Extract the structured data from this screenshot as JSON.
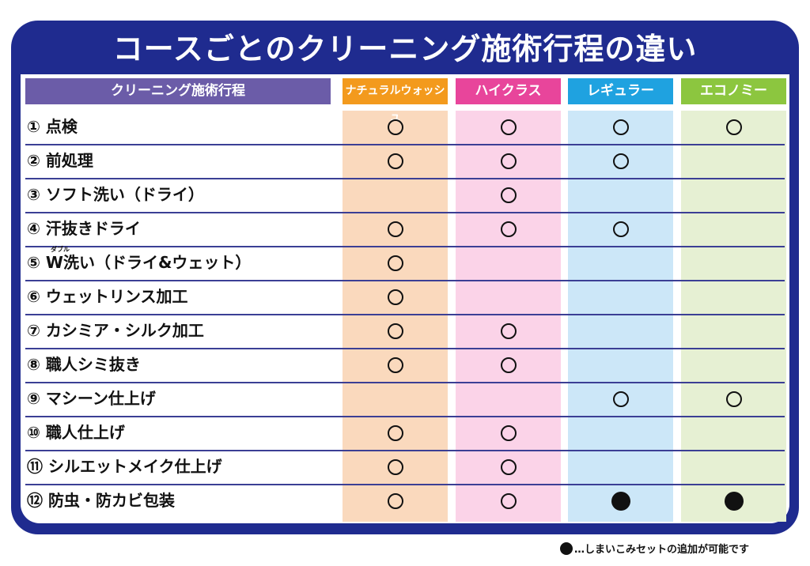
{
  "title": "コースごとのクリーニング施術行程の違い",
  "header": {
    "process_label": "クリーニング施術行程",
    "courses": [
      {
        "label": "ナチュラルウォッシュ",
        "color": "#f39a1d",
        "bg": "#fad9bd"
      },
      {
        "label": "ハイクラス",
        "color": "#e8459b",
        "bg": "#fbd3e8"
      },
      {
        "label": "レギュラー",
        "color": "#1fa2e0",
        "bg": "#cce7f8"
      },
      {
        "label": "エコノミー",
        "color": "#8cc63f",
        "bg": "#e6f0d3"
      }
    ]
  },
  "rows": [
    {
      "label": "① 点検",
      "marks": [
        "open",
        "open",
        "open",
        "open"
      ]
    },
    {
      "label": "② 前処理",
      "marks": [
        "open",
        "open",
        "open",
        ""
      ]
    },
    {
      "label": "③ ソフト洗い（ドライ）",
      "marks": [
        "",
        "open",
        "",
        ""
      ]
    },
    {
      "label": "④ 汗抜きドライ",
      "marks": [
        "open",
        "open",
        "open",
        ""
      ]
    },
    {
      "label": "⑤ W洗い（ドライ&ウェット）",
      "ruby": "ダブル",
      "marks": [
        "open",
        "",
        "",
        ""
      ]
    },
    {
      "label": "⑥ ウェットリンス加工",
      "marks": [
        "open",
        "",
        "",
        ""
      ]
    },
    {
      "label": "⑦ カシミア・シルク加工",
      "marks": [
        "open",
        "open",
        "",
        ""
      ]
    },
    {
      "label": "⑧ 職人シミ抜き",
      "marks": [
        "open",
        "open",
        "",
        ""
      ]
    },
    {
      "label": "⑨ マシーン仕上げ",
      "marks": [
        "",
        "",
        "open",
        "open"
      ]
    },
    {
      "label": "⑩ 職人仕上げ",
      "marks": [
        "open",
        "open",
        "",
        ""
      ]
    },
    {
      "label": "⑪ シルエットメイク仕上げ",
      "marks": [
        "open",
        "open",
        "",
        ""
      ]
    },
    {
      "label": "⑫ 防虫・防カビ包装",
      "marks": [
        "open",
        "open",
        "filled",
        "filled"
      ]
    }
  ],
  "footnote": "…しまいこみセットの追加が可能です",
  "colors": {
    "frame": "#1f2b8f",
    "process_header": "#6b5ca8",
    "line": "#3b3f95"
  }
}
